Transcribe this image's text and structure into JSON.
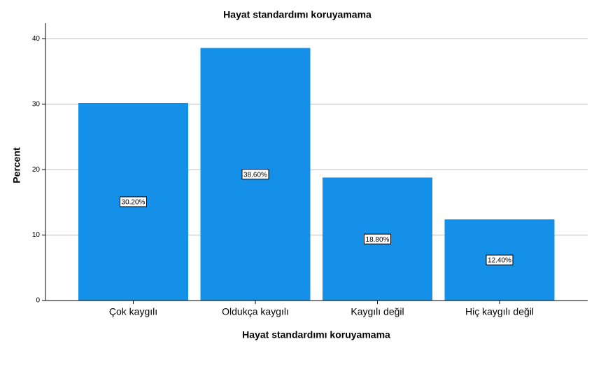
{
  "chart_data": {
    "type": "bar",
    "title": "Hayat standardımı koruyamama",
    "x_label": "Hayat standardımı koruyamama",
    "y_label": "Percent",
    "categories": [
      "Çok kaygılı",
      "Oldukça kaygılı",
      "Kaygılı değil",
      "Hiç kaygılı değil"
    ],
    "values": [
      30.2,
      38.6,
      18.8,
      12.4
    ],
    "value_labels": [
      "30.20%",
      "38.60%",
      "18.80%",
      "12.40%"
    ],
    "color": "#1590e8",
    "ylim": [
      0,
      42.4
    ],
    "yticks": [
      0,
      10,
      20,
      30,
      40
    ],
    "grid": true
  }
}
